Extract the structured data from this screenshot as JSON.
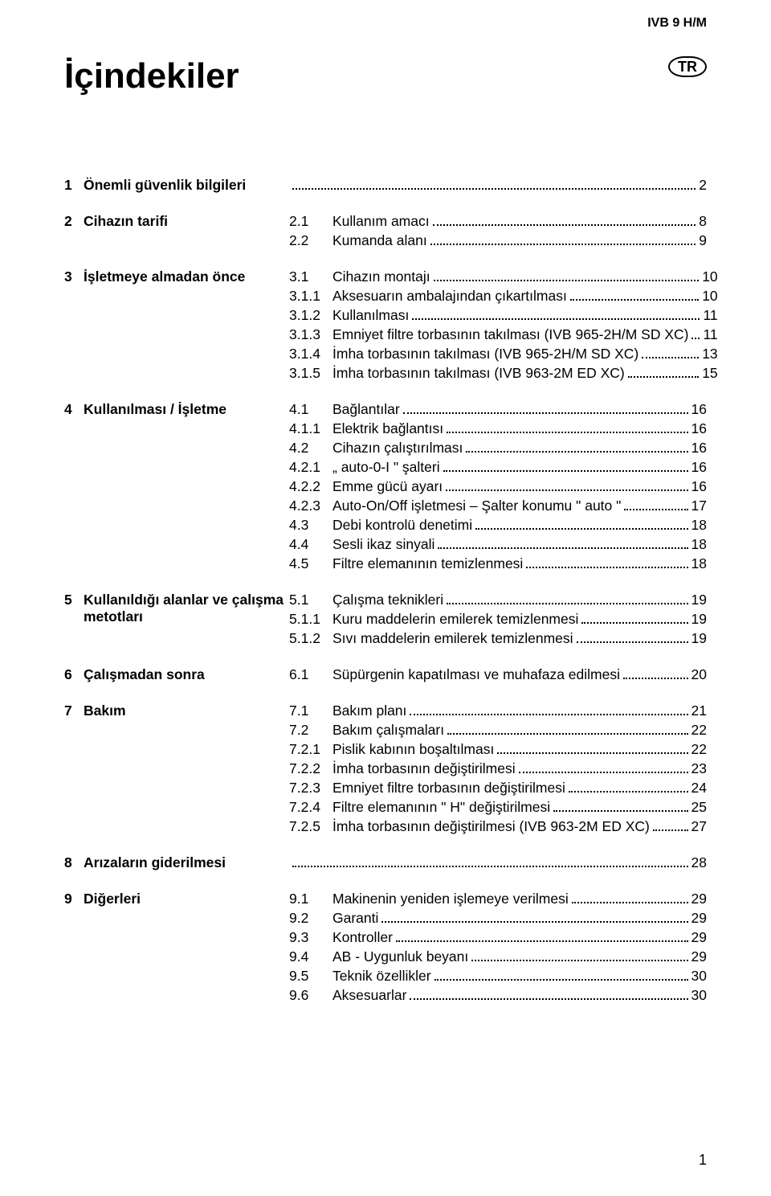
{
  "header_right": "IVB 9 H/M",
  "title": "İçindekiler",
  "badge": "TR",
  "footer": "1",
  "colors": {
    "text": "#000000",
    "background": "#ffffff",
    "dots": "#000000"
  },
  "typography": {
    "title_fontsize": 44,
    "body_fontsize": 17.5,
    "font_family": "Arial"
  },
  "sections": [
    {
      "num": "1",
      "title": "Önemli güvenlik bilgileri",
      "entries": [
        {
          "num": "",
          "title": "",
          "page": "2"
        }
      ]
    },
    {
      "num": "2",
      "title": "Cihazın tarifi",
      "entries": [
        {
          "num": "2.1",
          "title": "Kullanım amacı",
          "page": "8"
        },
        {
          "num": "2.2",
          "title": "Kumanda alanı",
          "page": "9"
        }
      ]
    },
    {
      "num": "3",
      "title": "İşletmeye almadan önce",
      "entries": [
        {
          "num": "3.1",
          "title": "Cihazın montajı",
          "page": "10"
        },
        {
          "num": "3.1.1",
          "title": "Aksesuarın ambalajından çıkartılması",
          "page": "10"
        },
        {
          "num": "3.1.2",
          "title": "Kullanılması",
          "page": "11"
        },
        {
          "num": "3.1.3",
          "title": "Emniyet filtre torbasının takılması (IVB 965-2H/M SD XC)",
          "page": "11"
        },
        {
          "num": "3.1.4",
          "title": "İmha torbasının takılması (IVB 965-2H/M SD XC)",
          "page": "13"
        },
        {
          "num": "3.1.5",
          "title": "İmha torbasının takılması (IVB 963-2M ED XC)",
          "page": "15"
        }
      ]
    },
    {
      "num": "4",
      "title": "Kullanılması / İşletme",
      "entries": [
        {
          "num": "4.1",
          "title": "Bağlantılar",
          "page": "16"
        },
        {
          "num": "4.1.1",
          "title": "Elektrik bağlantısı",
          "page": "16"
        },
        {
          "num": "4.2",
          "title": "Cihazın çalıştırılması",
          "page": "16"
        },
        {
          "num": "4.2.1",
          "title": "„ auto-0-I \" şalteri",
          "page": "16"
        },
        {
          "num": "4.2.2",
          "title": "Emme gücü ayarı",
          "page": "16"
        },
        {
          "num": "4.2.3",
          "title": "Auto-On/Off işletmesi – Şalter konumu \" auto \"",
          "page": "17"
        },
        {
          "num": "4.3",
          "title": "Debi kontrolü denetimi",
          "page": "18"
        },
        {
          "num": "4.4",
          "title": "Sesli ikaz sinyali",
          "page": "18"
        },
        {
          "num": "4.5",
          "title": "Filtre elemanının temizlenmesi",
          "page": "18"
        }
      ]
    },
    {
      "num": "5",
      "title": "Kullanıldığı alanlar ve çalışma metotları",
      "entries": [
        {
          "num": "5.1",
          "title": "Çalışma teknikleri",
          "page": "19"
        },
        {
          "num": "5.1.1",
          "title": "Kuru maddelerin emilerek temizlenmesi",
          "page": "19"
        },
        {
          "num": "5.1.2",
          "title": "Sıvı maddelerin emilerek temizlenmesi",
          "page": "19"
        }
      ]
    },
    {
      "num": "6",
      "title": "Çalışmadan sonra",
      "entries": [
        {
          "num": "6.1",
          "title": "Süpürgenin kapatılması ve muhafaza edilmesi",
          "page": "20"
        }
      ]
    },
    {
      "num": "7",
      "title": "Bakım",
      "entries": [
        {
          "num": "7.1",
          "title": "Bakım planı",
          "page": "21"
        },
        {
          "num": "7.2",
          "title": "Bakım çalışmaları",
          "page": "22"
        },
        {
          "num": "7.2.1",
          "title": "Pislik kabının boşaltılması",
          "page": "22"
        },
        {
          "num": "7.2.2",
          "title": "İmha torbasının değiştirilmesi",
          "page": "23"
        },
        {
          "num": "7.2.3",
          "title": "Emniyet filtre torbasının değiştirilmesi",
          "page": "24"
        },
        {
          "num": "7.2.4",
          "title": "Filtre elemanının \" H\" değiştirilmesi",
          "page": "25"
        },
        {
          "num": "7.2.5",
          "title": "İmha torbasının değiştirilmesi (IVB 963-2M ED XC)",
          "page": "27"
        }
      ]
    },
    {
      "num": "8",
      "title": "Arızaların giderilmesi",
      "entries": [
        {
          "num": "",
          "title": "",
          "page": "28"
        }
      ]
    },
    {
      "num": "9",
      "title": "Diğerleri",
      "entries": [
        {
          "num": "9.1",
          "title": "Makinenin yeniden işlemeye verilmesi",
          "page": "29"
        },
        {
          "num": "9.2",
          "title": "Garanti",
          "page": "29"
        },
        {
          "num": "9.3",
          "title": "Kontroller",
          "page": "29"
        },
        {
          "num": "9.4",
          "title": "AB - Uygunluk beyanı",
          "page": "29"
        },
        {
          "num": "9.5",
          "title": "Teknik özellikler",
          "page": "30"
        },
        {
          "num": "9.6",
          "title": "Aksesuarlar",
          "page": "30"
        }
      ]
    }
  ]
}
